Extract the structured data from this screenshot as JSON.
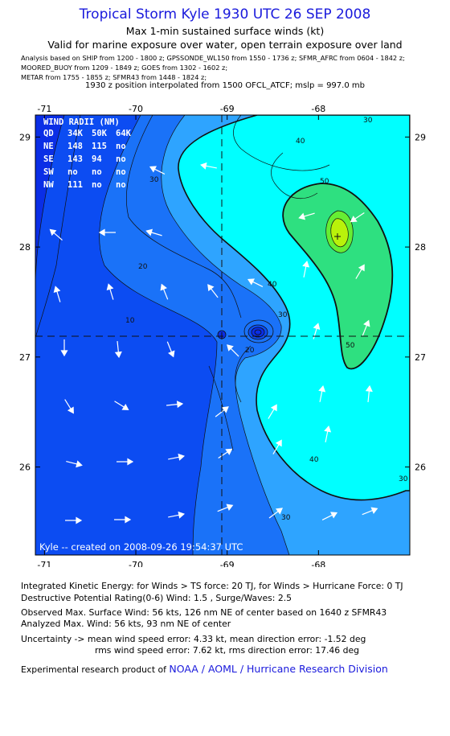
{
  "header": {
    "title": "Tropical Storm Kyle 1930 UTC 26 SEP 2008",
    "subtitle": "Max 1-min sustained surface winds (kt)",
    "validity": "Valid for marine exposure over water, open terrain exposure over land",
    "analysis_lines": [
      "Analysis based on   SHIP from 1200 - 1800 z;  GPSSONDE_WL150 from 1550 - 1736 z;  SFMR_AFRC from 0604 - 1842 z;",
      "MOORED_BUOY from 1209 - 1849 z;  GOES from 1302 - 1602 z;",
      "METAR from 1755 - 1855 z;  SFMR43 from 1448 - 1824 z;"
    ],
    "position_note": "1930 z position interpolated from 1500 OFCL_ATCF; mslp = 997.0 mb"
  },
  "wind_radii": {
    "title": "WIND RADII (NM)",
    "header": [
      "QD",
      "34K",
      "50K",
      "64K"
    ],
    "rows": [
      [
        "NE",
        "148",
        "115",
        "no"
      ],
      [
        "SE",
        "143",
        "94",
        "no"
      ],
      [
        "SW",
        "no",
        "no",
        "no"
      ],
      [
        "NW",
        "111",
        "no",
        "no"
      ]
    ]
  },
  "credit": "Kyle -- created on 2008-09-26 19:54:37 UTC",
  "chart_data": {
    "type": "heatmap",
    "x_ticks": [
      "-71",
      "-70",
      "-69",
      "-68"
    ],
    "y_ticks": [
      "29",
      "28",
      "27",
      "26"
    ],
    "xlim": [
      -71.1,
      -67.0
    ],
    "ylim": [
      25.2,
      29.2
    ],
    "center": {
      "lon": -68.9,
      "lat": 27.2
    },
    "max_wind_marker": {
      "lon": -67.98,
      "lat": 28.08
    },
    "contour_labels": [
      "40",
      "50",
      "30",
      "30",
      "20",
      "10",
      "40",
      "30",
      "20",
      "50",
      "40",
      "30",
      "30"
    ],
    "colors": {
      "wind_0": "#0a2ee6",
      "wind_10": "#0c4cf2",
      "wind_20": "#1a72f8",
      "wind_30": "#2ea4ff",
      "wind_40": "#00ffff",
      "wind_50": "#2ee080",
      "wind_60": "#66ee33",
      "wind_64": "#b9f20a"
    }
  },
  "footer": {
    "ike": "Integrated Kinetic Energy:  for Winds > TS force: 20 TJ,  for Winds > Hurricane Force: 0 TJ",
    "dpr": "Destructive Potential Rating(0-6)   Wind: 1.5 , Surge/Waves: 2.5",
    "observed": "Observed Max. Surface Wind: 56 kts, 126 nm NE of center based on 1640 z SFMR43",
    "analyzed": "Analyzed Max. Wind: 56 kts, 93 nm NE of center",
    "uncertainty1": "Uncertainty -> mean wind speed error: 4.33 kt,   mean direction error:  -1.52 deg",
    "uncertainty2": "rms wind speed error: 7.62 kt,   rms direction error: 17.46 deg",
    "product": "Experimental research product of ",
    "org": "NOAA / AOML / Hurricane Research Division"
  }
}
